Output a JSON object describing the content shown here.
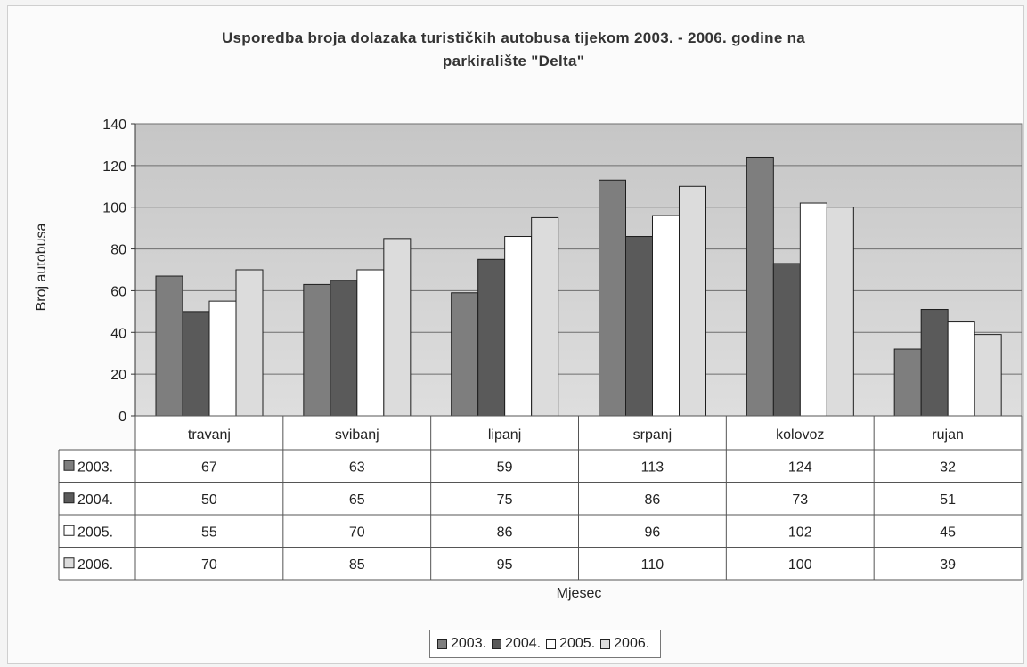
{
  "chart_data": {
    "type": "bar",
    "title": "Usporedba broja dolazaka turističkih autobusa tijekom 2003. - 2006. godine na parkiralište \"Delta\"",
    "title_lines": [
      "Usporedba broja dolazaka turističkih autobusa tijekom 2003. - 2006. godine na",
      "parkiralište \"Delta\""
    ],
    "xlabel": "Mjesec",
    "ylabel": "Broj autobusa",
    "ylim": [
      0,
      140
    ],
    "yticks": [
      0,
      20,
      40,
      60,
      80,
      100,
      120,
      140
    ],
    "ytick_labels": [
      "0",
      "20",
      "40",
      "60",
      "80",
      "100",
      "120",
      "140"
    ],
    "grid": true,
    "legend_position": "bottom",
    "data_table": true,
    "categories": [
      "travanj",
      "svibanj",
      "lipanj",
      "srpanj",
      "kolovoz",
      "rujan"
    ],
    "series": [
      {
        "name": "2003.",
        "color": "#7e7e7e",
        "values": [
          67,
          63,
          59,
          113,
          124,
          32
        ]
      },
      {
        "name": "2004.",
        "color": "#5a5a5a",
        "values": [
          50,
          65,
          75,
          86,
          73,
          51
        ]
      },
      {
        "name": "2005.",
        "color": "#ffffff",
        "values": [
          55,
          70,
          86,
          96,
          102,
          45
        ]
      },
      {
        "name": "2006.",
        "color": "#dcdcdc",
        "values": [
          70,
          85,
          95,
          110,
          100,
          39
        ]
      }
    ],
    "table_cells": [
      [
        "67",
        "63",
        "59",
        "113",
        "124",
        "32"
      ],
      [
        "50",
        "65",
        "75",
        "86",
        "73",
        "51"
      ],
      [
        "55",
        "70",
        "86",
        "96",
        "102",
        "45"
      ],
      [
        "70",
        "85",
        "95",
        "110",
        "100",
        "39"
      ]
    ],
    "plot_background": "#cfcfcf"
  }
}
